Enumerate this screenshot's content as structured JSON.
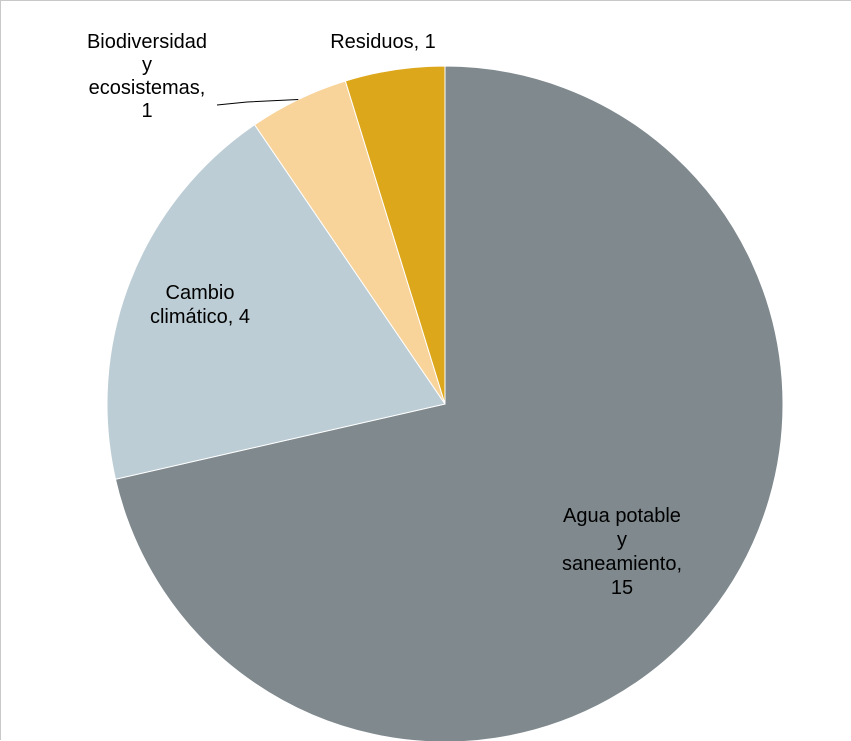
{
  "chart_data": {
    "type": "pie",
    "title": "",
    "start_angle": "12 o'clock, clockwise",
    "legend": "none",
    "slices": [
      {
        "label": "Agua potable y saneamiento",
        "value": 15,
        "label_text": "Agua potable y saneamiento, 15",
        "label_lines": [
          "Agua potable",
          "y",
          "saneamiento,",
          "15"
        ],
        "color": "#7f898e"
      },
      {
        "label": "Cambio climático",
        "value": 4,
        "label_text": "Cambio climático, 4",
        "label_lines": [
          "Cambio",
          "climático, 4"
        ],
        "color": "#bccdd5"
      },
      {
        "label": "Biodiversidad y ecosistemas",
        "value": 1,
        "label_text": "Biodiversidad y ecosistemas, 1",
        "label_lines": [
          "Biodiversidad",
          "y",
          "ecosistemas,",
          "1"
        ],
        "color": "#f8d39a"
      },
      {
        "label": "Residuos",
        "value": 1,
        "label_text": "Residuos, 1",
        "label_lines": [
          "Residuos, 1"
        ],
        "color": "#dda71c"
      }
    ]
  }
}
